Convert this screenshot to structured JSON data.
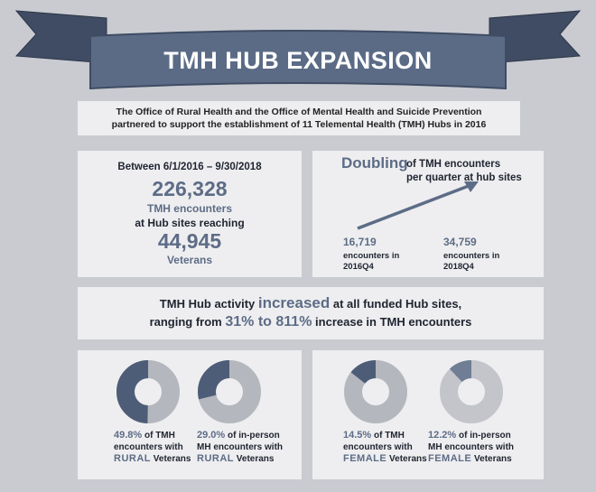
{
  "title": "TMH HUB EXPANSION",
  "intro": {
    "line1": "The Office of Rural Health and the Office of Mental Health and Suicide Prevention",
    "line2": "partnered to support the establishment of 11 Telemental Health (TMH) Hubs in 2016"
  },
  "left_panel": {
    "period": "Between 6/1/2016 – 9/30/2018",
    "encounters": "226,328",
    "encounters_label": "TMH encounters",
    "reaching": "at Hub sites reaching",
    "veterans": "44,945",
    "veterans_label": "Veterans"
  },
  "right_panel": {
    "headline": "Doubling",
    "headline_rest": "of TMH encounters",
    "headline_line2": "per quarter at hub sites",
    "start_value": "16,719",
    "start_line1": "encounters in",
    "start_line2": "2016Q4",
    "end_value": "34,759",
    "end_line1": "encounters in",
    "end_line2": "2018Q4"
  },
  "middle_panel": {
    "a": "TMH Hub activity ",
    "b": "increased",
    "c": " at all funded Hub sites,",
    "d": "ranging from ",
    "e": "31% to 811%",
    "f": " increase in TMH encounters"
  },
  "donuts": [
    {
      "percent": 49.8,
      "label_pct": "49.8%",
      "l1": " of TMH",
      "l2": "encounters with",
      "kw": "RURAL",
      "l3": " Veterans"
    },
    {
      "percent": 29.0,
      "label_pct": "29.0%",
      "l1": " of in-person",
      "l2": "MH encounters with",
      "kw": "RURAL",
      "l3": " Veterans"
    },
    {
      "percent": 14.5,
      "label_pct": "14.5%",
      "l1": " of TMH",
      "l2": "encounters with",
      "kw": "FEMALE",
      "l3": " Veterans"
    },
    {
      "percent": 12.2,
      "label_pct": "12.2%",
      "l1": " of in-person",
      "l2": "MH encounters with",
      "kw": "FEMALE",
      "l3": " Veterans"
    }
  ],
  "colors": {
    "banner": "#5b6b86",
    "banner_dark": "#3f4c63",
    "accent": "#5d6c86",
    "donut_fill": "#4e5d77",
    "donut_track": "#b4b7be",
    "panel": "#eeeef0",
    "background": "#c9cbd1"
  }
}
